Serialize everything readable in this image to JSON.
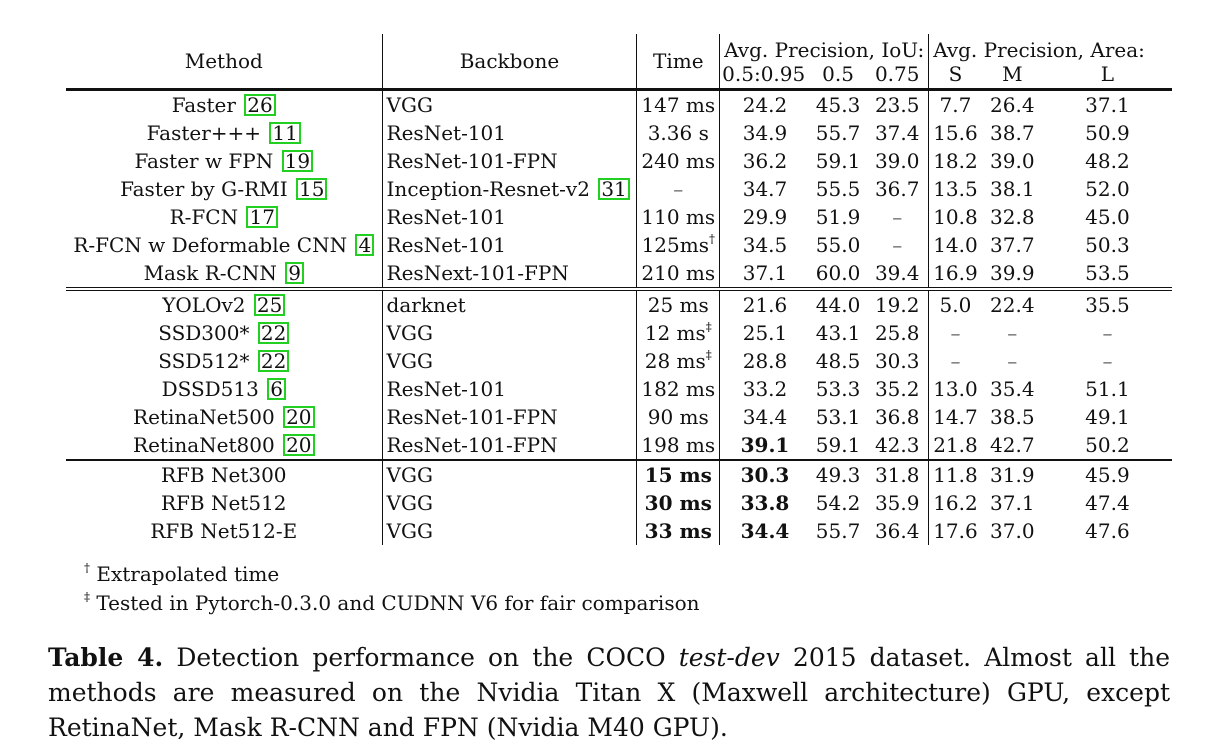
{
  "header": {
    "method": "Method",
    "backbone": "Backbone",
    "time": "Time",
    "ap_iou_group": "Avg. Precision, IoU:",
    "ap_area_group": "Avg. Precision, Area:",
    "ap_range": "0.5:0.95",
    "ap50": "0.5",
    "ap75": "0.75",
    "s": "S",
    "m": "M",
    "l": "L"
  },
  "rows": [
    {
      "method": "Faster",
      "cite": "26",
      "backbone": "VGG",
      "time": "147 ms",
      "ap": "24.2",
      "ap50": "45.3",
      "ap75": "23.5",
      "s": "7.7",
      "m": "26.4",
      "l": "37.1"
    },
    {
      "method": "Faster+++",
      "cite": "11",
      "backbone": "ResNet-101",
      "time": "3.36 s",
      "ap": "34.9",
      "ap50": "55.7",
      "ap75": "37.4",
      "s": "15.6",
      "m": "38.7",
      "l": "50.9"
    },
    {
      "method": "Faster w FPN",
      "cite": "19",
      "backbone": "ResNet-101-FPN",
      "time": "240 ms",
      "ap": "36.2",
      "ap50": "59.1",
      "ap75": "39.0",
      "s": "18.2",
      "m": "39.0",
      "l": "48.2"
    },
    {
      "method": "Faster by G-RMI",
      "cite": "15",
      "backbone": "Inception-Resnet-v2",
      "backbone_cite": "31",
      "time": "–",
      "ap": "34.7",
      "ap50": "55.5",
      "ap75": "36.7",
      "s": "13.5",
      "m": "38.1",
      "l": "52.0"
    },
    {
      "method": "R-FCN",
      "cite": "17",
      "backbone": "ResNet-101",
      "time": "110 ms",
      "ap": "29.9",
      "ap50": "51.9",
      "ap75": "–",
      "s": "10.8",
      "m": "32.8",
      "l": "45.0"
    },
    {
      "method": "R-FCN w Deformable CNN",
      "cite": "4",
      "backbone": "ResNet-101",
      "time": "125ms",
      "time_sup": "†",
      "ap": "34.5",
      "ap50": "55.0",
      "ap75": "–",
      "s": "14.0",
      "m": "37.7",
      "l": "50.3"
    },
    {
      "method": "Mask R-CNN",
      "cite": "9",
      "backbone": "ResNext-101-FPN",
      "time": "210 ms",
      "ap": "37.1",
      "ap50": "60.0",
      "ap75": "39.4",
      "s": "16.9",
      "m": "39.9",
      "l": "53.5"
    },
    {
      "method": "YOLOv2",
      "cite": "25",
      "backbone": "darknet",
      "time": "25 ms",
      "ap": "21.6",
      "ap50": "44.0",
      "ap75": "19.2",
      "s": "5.0",
      "m": "22.4",
      "l": "35.5"
    },
    {
      "method": "SSD300*",
      "cite": "22",
      "backbone": "VGG",
      "time": "12 ms",
      "time_sup": "‡",
      "ap": "25.1",
      "ap50": "43.1",
      "ap75": "25.8",
      "s": "–",
      "m": "–",
      "l": "–"
    },
    {
      "method": "SSD512*",
      "cite": "22",
      "backbone": "VGG",
      "time": "28 ms",
      "time_sup": "‡",
      "ap": "28.8",
      "ap50": "48.5",
      "ap75": "30.3",
      "s": "–",
      "m": "–",
      "l": "–"
    },
    {
      "method": "DSSD513",
      "cite": "6",
      "backbone": "ResNet-101",
      "time": "182 ms",
      "ap": "33.2",
      "ap50": "53.3",
      "ap75": "35.2",
      "s": "13.0",
      "m": "35.4",
      "l": "51.1"
    },
    {
      "method": "RetinaNet500",
      "cite": "20",
      "backbone": "ResNet-101-FPN",
      "time": "90 ms",
      "ap": "34.4",
      "ap50": "53.1",
      "ap75": "36.8",
      "s": "14.7",
      "m": "38.5",
      "l": "49.1"
    },
    {
      "method": "RetinaNet800",
      "cite": "20",
      "backbone": "ResNet-101-FPN",
      "time": "198 ms",
      "ap": "39.1",
      "ap_bold": true,
      "ap50": "59.1",
      "ap75": "42.3",
      "s": "21.8",
      "m": "42.7",
      "l": "50.2"
    },
    {
      "method": "RFB Net300",
      "backbone": "VGG",
      "time": "15 ms",
      "time_bold": true,
      "ap": "30.3",
      "ap_bold": true,
      "ap50": "49.3",
      "ap75": "31.8",
      "s": "11.8",
      "m": "31.9",
      "l": "45.9"
    },
    {
      "method": "RFB Net512",
      "backbone": "VGG",
      "time": "30 ms",
      "time_bold": true,
      "ap": "33.8",
      "ap_bold": true,
      "ap50": "54.2",
      "ap75": "35.9",
      "s": "16.2",
      "m": "37.1",
      "l": "47.4"
    },
    {
      "method": "RFB Net512-E",
      "backbone": "VGG",
      "time": "33 ms",
      "time_bold": true,
      "ap": "34.4",
      "ap_bold": true,
      "ap50": "55.7",
      "ap75": "36.4",
      "s": "17.6",
      "m": "37.0",
      "l": "47.6"
    }
  ],
  "footnotes": [
    {
      "mark": "†",
      "text": "Extrapolated time"
    },
    {
      "mark": "‡",
      "text": "Tested in Pytorch-0.3.0 and CUDNN V6 for fair comparison"
    }
  ],
  "caption": {
    "label": "Table 4.",
    "text_before": "Detection performance on the COCO",
    "italic": "test-dev",
    "text_after": "2015 dataset. Almost all the methods are measured on the Nvidia Titan X (Maxwell architecture) GPU, except RetinaNet, Mask R-CNN and FPN (Nvidia M40 GPU)."
  },
  "colors": {
    "cite_border": "#22d022"
  }
}
